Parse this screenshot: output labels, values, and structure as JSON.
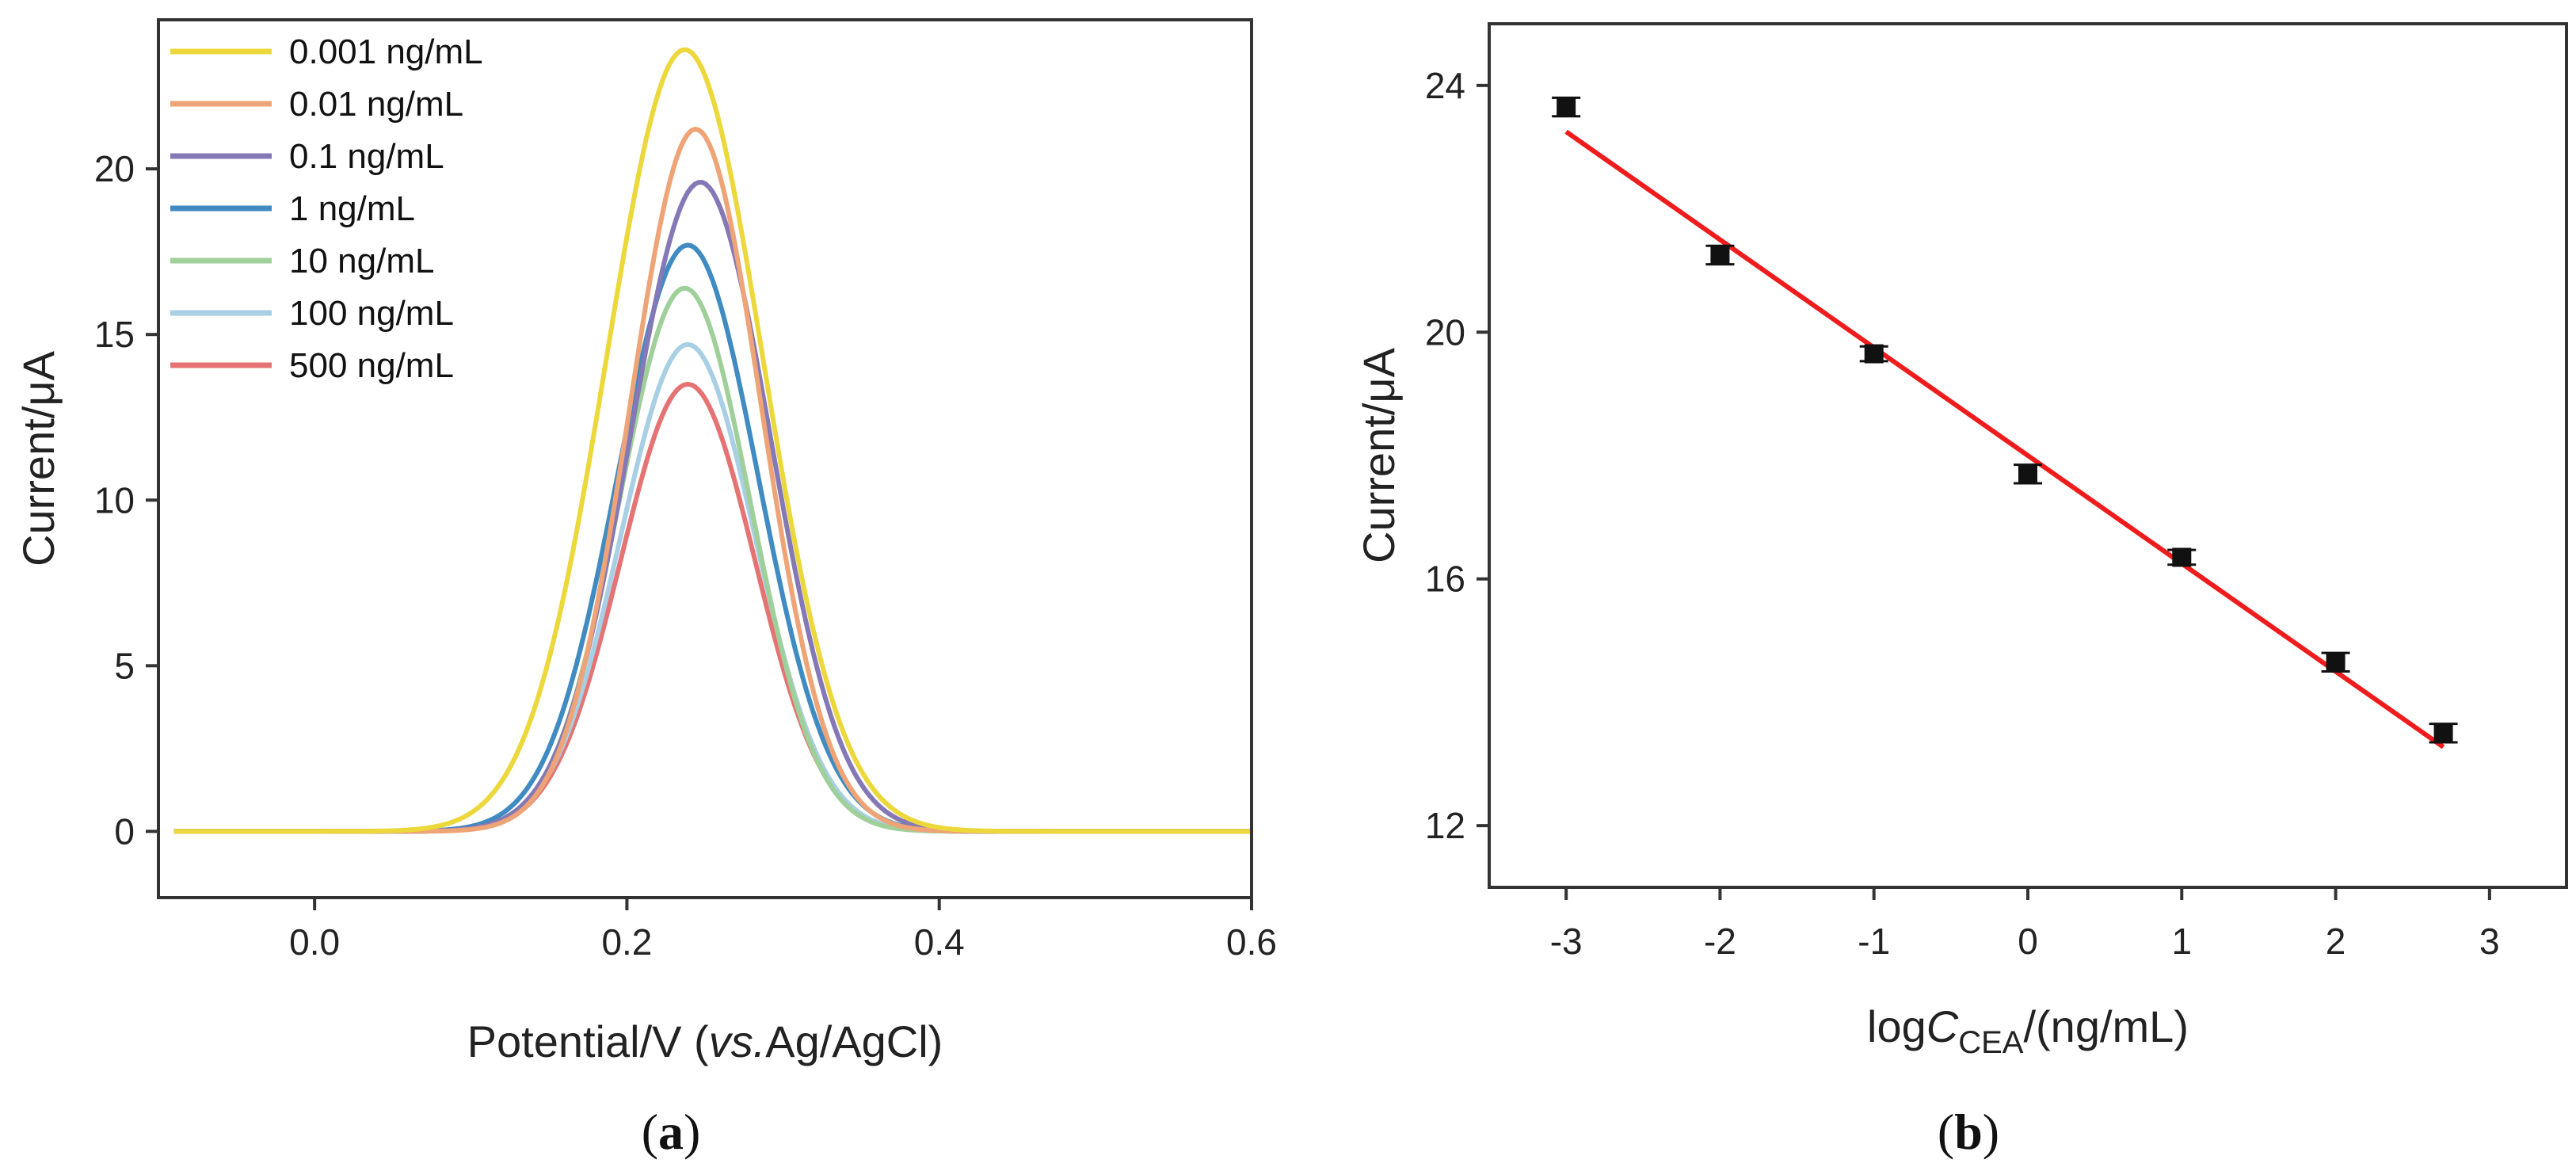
{
  "chart_data": [
    {
      "id": "a",
      "type": "line",
      "panel_prefix": "(",
      "panel_label": "a",
      "panel_suffix": ")",
      "ylabel": "Current/μA",
      "xlabel_main": "Potential/V (",
      "xlabel_italic": "vs.",
      "xlabel_end": "Ag/AgCl)",
      "xlim": [
        -0.1,
        0.6
      ],
      "ylim": [
        -2,
        24.5
      ],
      "xticks": [
        0.0,
        0.2,
        0.4,
        0.6
      ],
      "xtick_labels": [
        "0.0",
        "0.2",
        "0.4",
        "0.6"
      ],
      "yticks": [
        0,
        5,
        10,
        15,
        20
      ],
      "ytick_labels": [
        "0",
        "5",
        "10",
        "15",
        "20"
      ],
      "x_range_data": [
        -0.09,
        0.6
      ],
      "legend_position": "top-left",
      "series": [
        {
          "name": "0.001 ng/mL",
          "color": "#ecd83b",
          "peak_x": 0.237,
          "peak_y": 23.6,
          "width": 0.05
        },
        {
          "name": "0.01 ng/mL",
          "color": "#eea476",
          "peak_x": 0.244,
          "peak_y": 21.2,
          "width": 0.042
        },
        {
          "name": "0.1 ng/mL",
          "color": "#8479b6",
          "peak_x": 0.247,
          "peak_y": 19.6,
          "width": 0.045
        },
        {
          "name": "1 ng/mL",
          "color": "#3f8bc2",
          "peak_x": 0.239,
          "peak_y": 17.7,
          "width": 0.045
        },
        {
          "name": "10 ng/mL",
          "color": "#9fd09a",
          "peak_x": 0.237,
          "peak_y": 16.4,
          "width": 0.042
        },
        {
          "name": "100 ng/mL",
          "color": "#a8cfe4",
          "peak_x": 0.239,
          "peak_y": 14.7,
          "width": 0.043
        },
        {
          "name": "500 ng/mL",
          "color": "#e57373",
          "peak_x": 0.239,
          "peak_y": 13.5,
          "width": 0.043
        }
      ]
    },
    {
      "id": "b",
      "type": "scatter",
      "panel_prefix": "(",
      "panel_label": "b",
      "panel_suffix": ")",
      "ylabel": "Current/μA",
      "xlabel_pre": "log",
      "xlabel_italic": "C",
      "xlabel_sub": "CEA",
      "xlabel_post": "/(ng/mL)",
      "xlim": [
        -3.5,
        3.5
      ],
      "ylim": [
        11,
        25
      ],
      "xticks": [
        -3,
        -2,
        -1,
        0,
        1,
        2,
        3
      ],
      "xtick_labels": [
        "-3",
        "-2",
        "-1",
        "0",
        "1",
        "2",
        "3"
      ],
      "yticks": [
        12,
        16,
        20,
        24
      ],
      "ytick_labels": [
        "12",
        "16",
        "20",
        "24"
      ],
      "points": [
        {
          "x": -3,
          "y": 23.65,
          "err": 0.15
        },
        {
          "x": -2,
          "y": 21.25,
          "err": 0.15
        },
        {
          "x": -1,
          "y": 19.65,
          "err": 0.12
        },
        {
          "x": 0,
          "y": 17.7,
          "err": 0.15
        },
        {
          "x": 1,
          "y": 16.35,
          "err": 0.12
        },
        {
          "x": 2,
          "y": 14.65,
          "err": 0.15
        },
        {
          "x": 2.7,
          "y": 13.5,
          "err": 0.15
        }
      ],
      "fit": {
        "slope": -1.75,
        "intercept": 18.0,
        "x_start": -3,
        "x_end": 2.7,
        "color": "#ee1c1c"
      },
      "point_color": "#111111"
    }
  ]
}
